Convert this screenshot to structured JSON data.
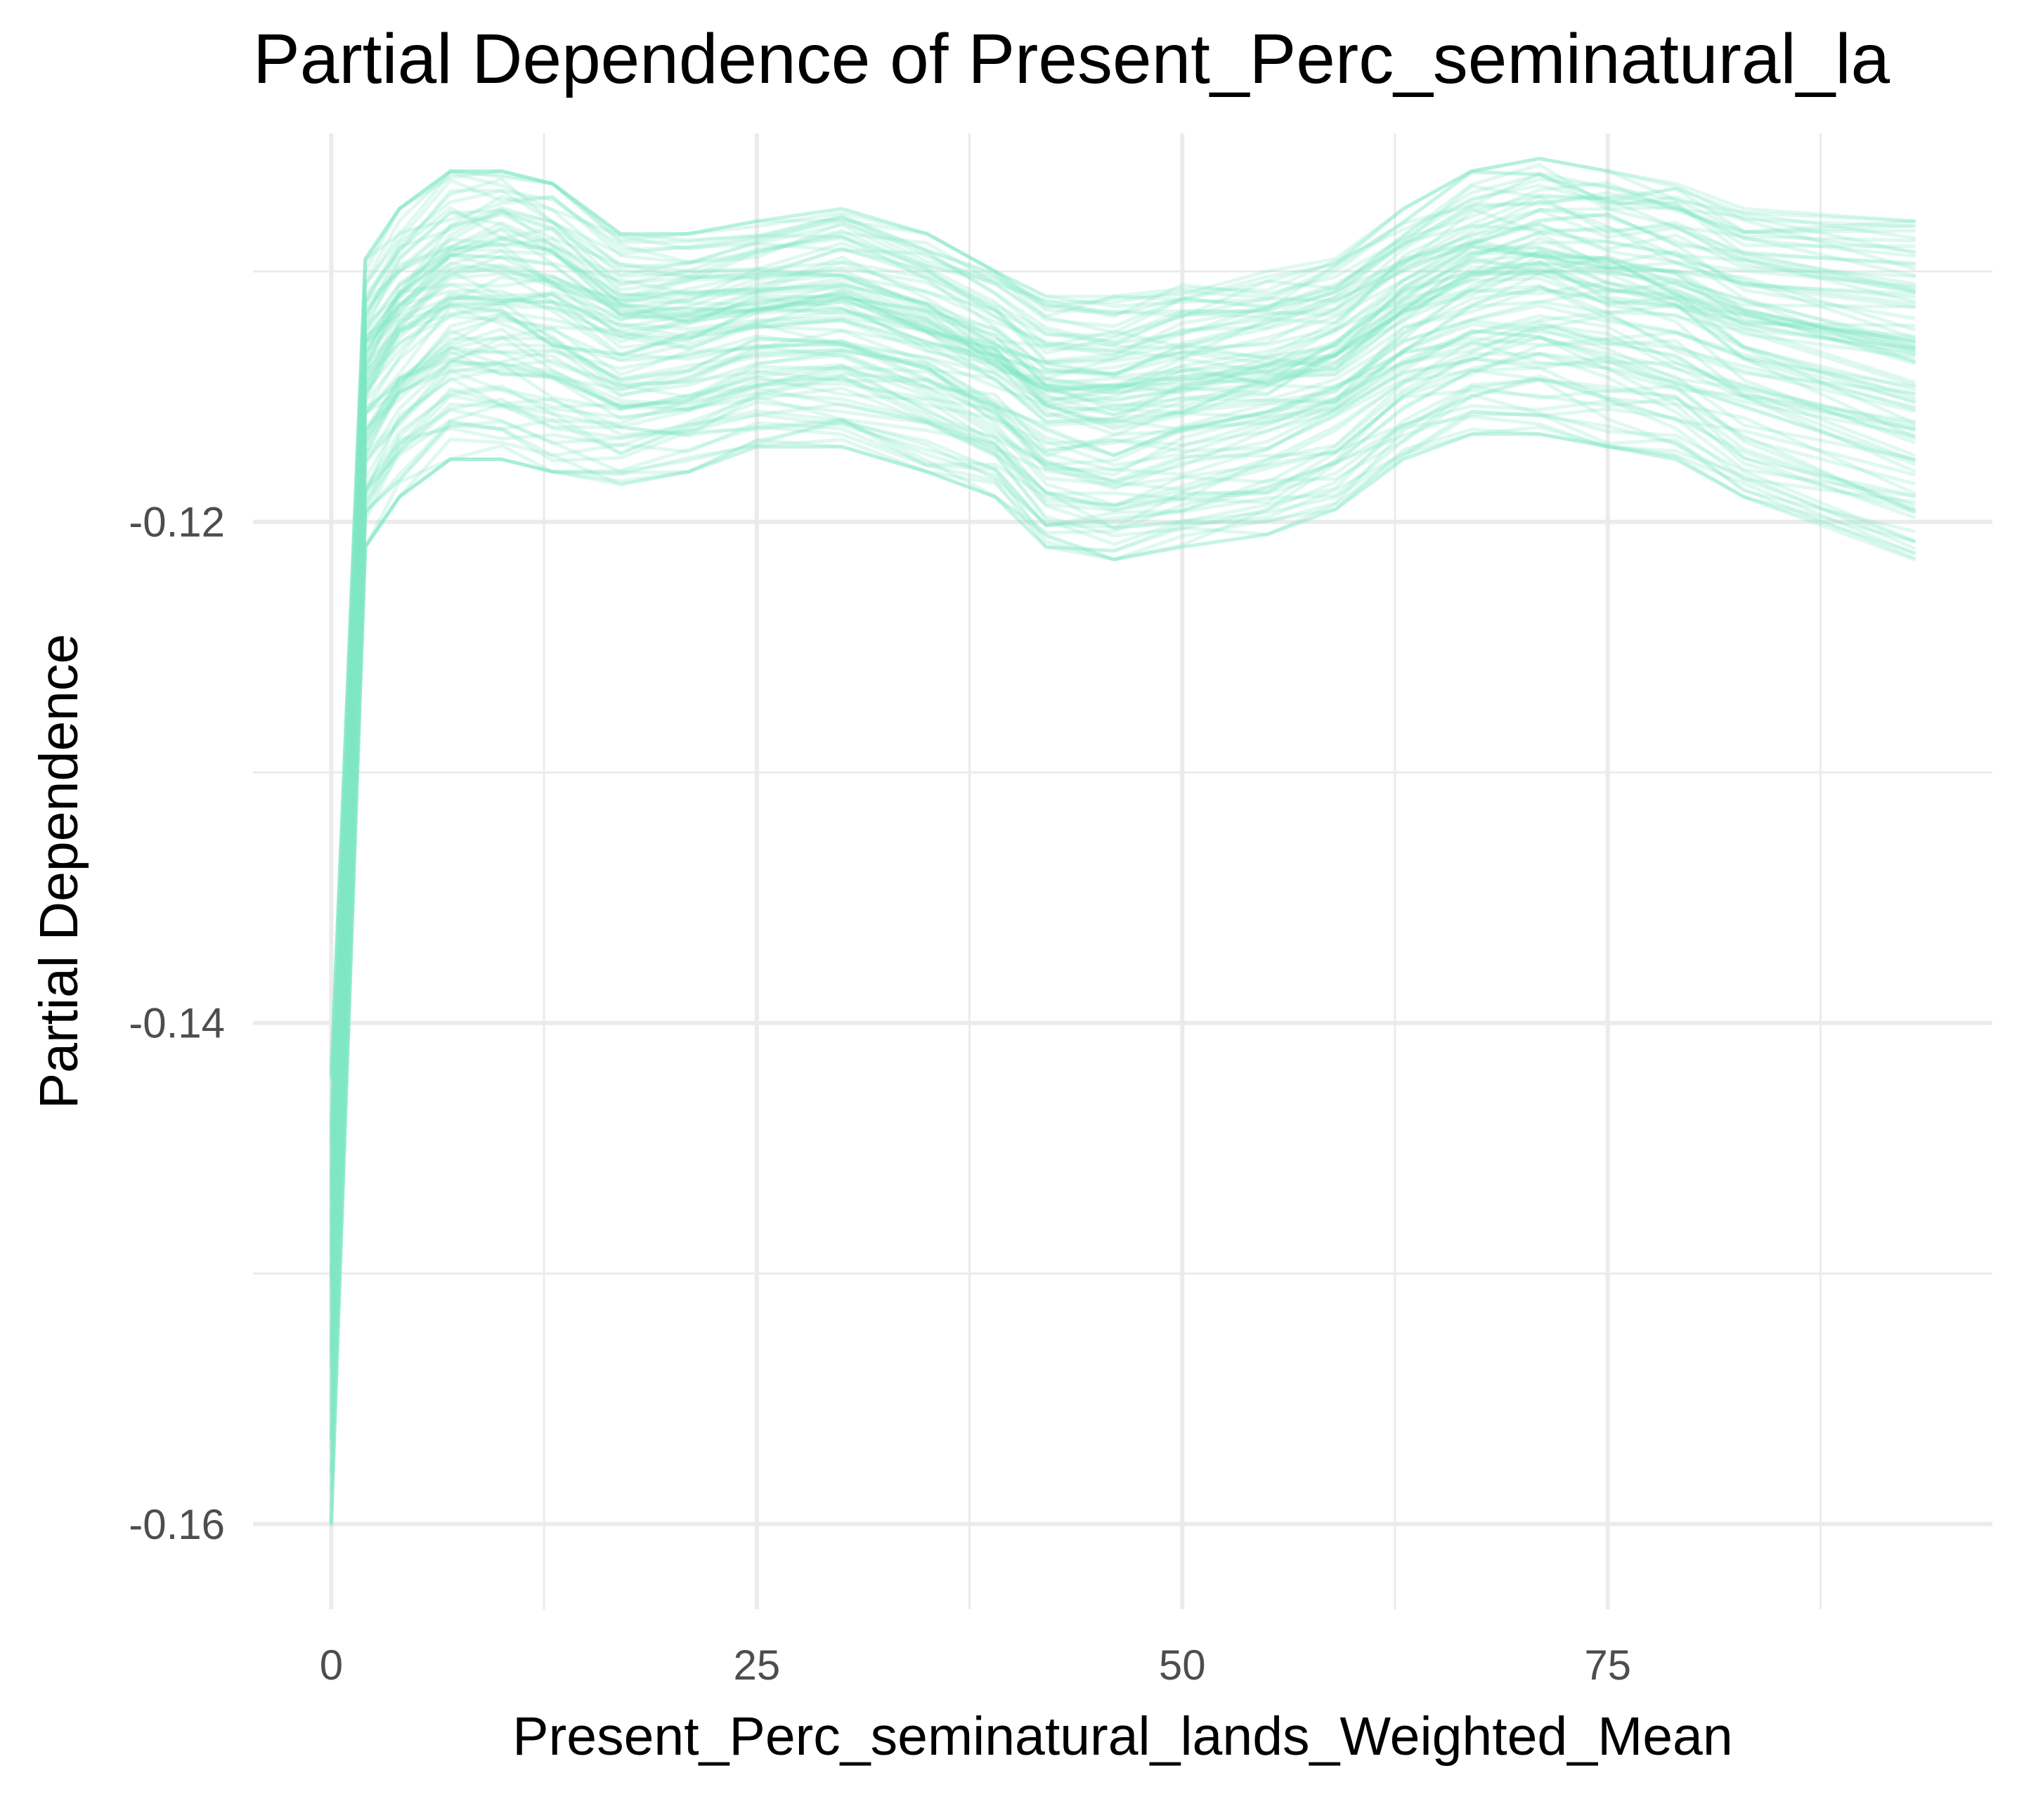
{
  "chart_data": {
    "type": "line",
    "title": "Partial Dependence of Present_Perc_seminatural_la",
    "xlabel": "Present_Perc_seminatural_lands_Weighted_Mean",
    "ylabel": "Partial Dependence",
    "x_ticks": [
      {
        "value": 0,
        "label": "0"
      },
      {
        "value": 25,
        "label": "25"
      },
      {
        "value": 50,
        "label": "50"
      },
      {
        "value": 75,
        "label": "75"
      }
    ],
    "y_ticks": [
      {
        "value": -0.12,
        "label": "-0.12"
      },
      {
        "value": -0.14,
        "label": "-0.14"
      },
      {
        "value": -0.16,
        "label": "-0.16"
      }
    ],
    "xlim": [
      -4.6,
      97.6
    ],
    "ylim": [
      -0.1634,
      -0.1045
    ],
    "grid": true,
    "line_color": "#7ee8c4",
    "line_opacity": 0.25,
    "series_count": 100,
    "base_curve": {
      "x": [
        0,
        2,
        4,
        7,
        10,
        13,
        17,
        21,
        25,
        30,
        35,
        39,
        42,
        46,
        50,
        55,
        59,
        63,
        67,
        71,
        75,
        79,
        83,
        93
      ],
      "y": [
        -0.1515,
        -0.1125,
        -0.1105,
        -0.1088,
        -0.1092,
        -0.1098,
        -0.1115,
        -0.1122,
        -0.1117,
        -0.1112,
        -0.1122,
        -0.1138,
        -0.1155,
        -0.1162,
        -0.116,
        -0.1158,
        -0.1148,
        -0.1118,
        -0.1095,
        -0.1095,
        -0.1098,
        -0.1103,
        -0.1112,
        -0.114
      ]
    },
    "spread": {
      "x": [
        0,
        2,
        4,
        7,
        10,
        13,
        17,
        21,
        25,
        30,
        35,
        39,
        42,
        46,
        50,
        55,
        59,
        63,
        67,
        71,
        75,
        79,
        83,
        93
      ],
      "low": [
        -0.16,
        -0.121,
        -0.119,
        -0.1175,
        -0.1175,
        -0.118,
        -0.1185,
        -0.118,
        -0.117,
        -0.117,
        -0.118,
        -0.119,
        -0.121,
        -0.1215,
        -0.121,
        -0.1205,
        -0.1195,
        -0.1175,
        -0.1165,
        -0.1165,
        -0.117,
        -0.1175,
        -0.119,
        -0.1215
      ],
      "high": [
        -0.142,
        -0.1095,
        -0.1075,
        -0.106,
        -0.106,
        -0.1065,
        -0.1085,
        -0.1085,
        -0.108,
        -0.1075,
        -0.1085,
        -0.11,
        -0.111,
        -0.111,
        -0.1105,
        -0.11,
        -0.1095,
        -0.1075,
        -0.106,
        -0.1055,
        -0.106,
        -0.1065,
        -0.1075,
        -0.108
      ]
    }
  }
}
